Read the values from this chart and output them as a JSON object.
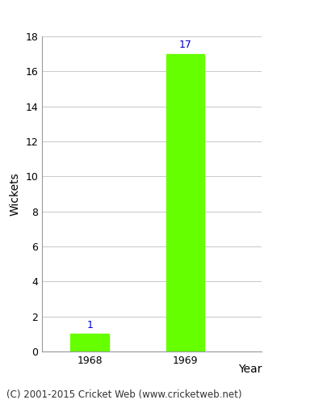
{
  "categories": [
    "1968",
    "1969"
  ],
  "values": [
    1,
    17
  ],
  "bar_color": "#66ff00",
  "bar_edgecolor": "#66ff00",
  "ylabel": "Wickets",
  "xlabel": "Year",
  "ylim": [
    0,
    18
  ],
  "yticks": [
    0,
    2,
    4,
    6,
    8,
    10,
    12,
    14,
    16,
    18
  ],
  "label_color": "#0000cc",
  "label_fontsize": 9,
  "axis_label_fontsize": 10,
  "tick_fontsize": 9,
  "grid_color": "#cccccc",
  "background_color": "#ffffff",
  "footer_text": "(C) 2001-2015 Cricket Web (www.cricketweb.net)",
  "footer_fontsize": 8.5,
  "bar_width": 0.4
}
